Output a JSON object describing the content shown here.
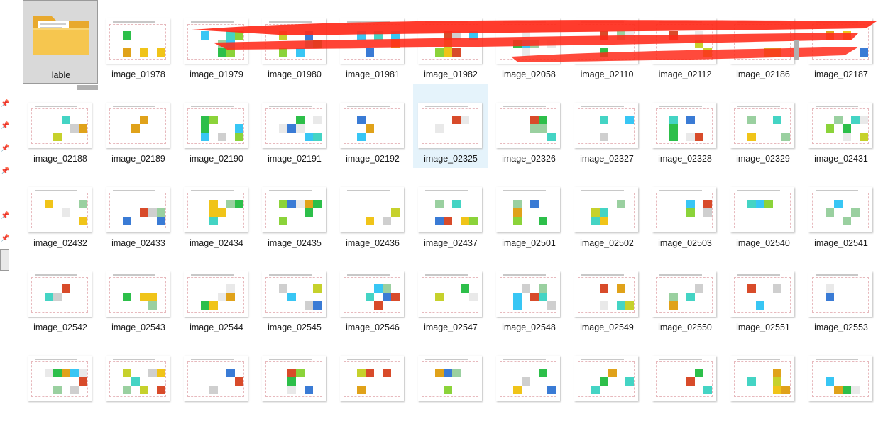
{
  "folder": {
    "label": "lable"
  },
  "files": [
    {
      "label": "image_01978"
    },
    {
      "label": "image_01979"
    },
    {
      "label": "image_01980"
    },
    {
      "label": "image_01981"
    },
    {
      "label": "image_01982"
    },
    {
      "label": "image_02058"
    },
    {
      "label": "image_02110"
    },
    {
      "label": "image_02112"
    },
    {
      "label": "image_02186"
    },
    {
      "label": "image_02187"
    },
    {
      "label": "image_02188"
    },
    {
      "label": "image_02189"
    },
    {
      "label": "image_02190"
    },
    {
      "label": "image_02191"
    },
    {
      "label": "image_02192"
    },
    {
      "label": "image_02325"
    },
    {
      "label": "image_02326"
    },
    {
      "label": "image_02327"
    },
    {
      "label": "image_02328"
    },
    {
      "label": "image_02329"
    },
    {
      "label": "image_02431"
    },
    {
      "label": "image_02432"
    },
    {
      "label": "image_02433"
    },
    {
      "label": "image_02434"
    },
    {
      "label": "image_02435"
    },
    {
      "label": "image_02436"
    },
    {
      "label": "image_02437"
    },
    {
      "label": "image_02501"
    },
    {
      "label": "image_02502"
    },
    {
      "label": "image_02503"
    },
    {
      "label": "image_02540"
    },
    {
      "label": "image_02541"
    },
    {
      "label": "image_02542"
    },
    {
      "label": "image_02543"
    },
    {
      "label": "image_02544"
    },
    {
      "label": "image_02545"
    },
    {
      "label": "image_02546"
    },
    {
      "label": "image_02547"
    },
    {
      "label": "image_02548"
    },
    {
      "label": "image_02549"
    },
    {
      "label": "image_02550"
    },
    {
      "label": "image_02551"
    },
    {
      "label": "image_02553"
    },
    {
      "label": ""
    },
    {
      "label": ""
    },
    {
      "label": ""
    },
    {
      "label": ""
    },
    {
      "label": ""
    },
    {
      "label": ""
    },
    {
      "label": ""
    },
    {
      "label": ""
    },
    {
      "label": ""
    },
    {
      "label": ""
    },
    {
      "label": ""
    }
  ],
  "selected_index": 15,
  "colors": {
    "selection": "#e5f3fb",
    "folder": "#f4c14f",
    "scribble": "#ff2a1a",
    "palette": [
      "#2dbf4a",
      "#f0c419",
      "#38c6f4",
      "#8bd33a",
      "#3a7bd5",
      "#e0a21a",
      "#c6d12c",
      "#44d4c4",
      "#d84b2a",
      "#9ad0a0",
      "#e9e9e9",
      "#cfcfcf"
    ]
  }
}
